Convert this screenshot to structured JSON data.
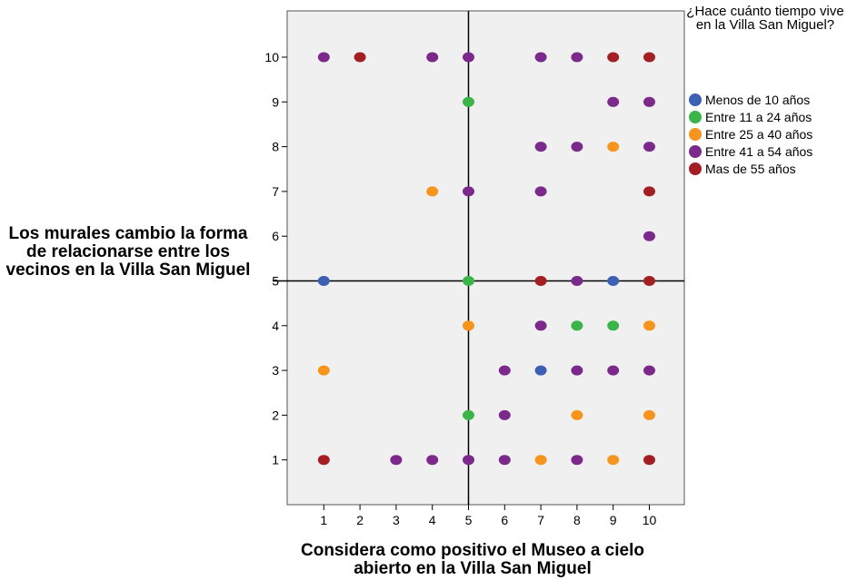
{
  "chart_data": {
    "type": "scatter",
    "title": "",
    "xlabel": "Considera como positivo el Museo a cielo abierto en la Villa San Miguel",
    "ylabel": "Los murales cambio la forma de relacionarse entre los vecinos en la Villa San Miguel",
    "xlim": [
      0,
      11
    ],
    "ylim": [
      0,
      11
    ],
    "xticks": [
      1,
      2,
      3,
      4,
      5,
      6,
      7,
      8,
      9,
      10
    ],
    "yticks": [
      1,
      2,
      3,
      4,
      5,
      6,
      7,
      8,
      9,
      10
    ],
    "grid": false,
    "reference_lines": {
      "x": 5,
      "y": 5
    },
    "legend_title": "¿Hace cuánto tiempo vive en la Villa San Miguel?",
    "legend_position": "right",
    "series": [
      {
        "name": "Menos de 10 años",
        "color": "#3d5fb4",
        "points": [
          [
            1,
            5
          ],
          [
            7,
            3
          ],
          [
            9,
            5
          ]
        ]
      },
      {
        "name": "Entre 11 a 24 años",
        "color": "#3bb54a",
        "points": [
          [
            5,
            9
          ],
          [
            5,
            5
          ],
          [
            8,
            4
          ],
          [
            9,
            4
          ],
          [
            5,
            2
          ]
        ]
      },
      {
        "name": "Entre 25 a 40 años",
        "color": "#f7941d",
        "points": [
          [
            9,
            8
          ],
          [
            4,
            7
          ],
          [
            5,
            4
          ],
          [
            10,
            4
          ],
          [
            1,
            3
          ],
          [
            8,
            2
          ],
          [
            10,
            2
          ],
          [
            7,
            1
          ],
          [
            9,
            1
          ]
        ]
      },
      {
        "name": "Entre 41 a 54 años",
        "color": "#7b2a8c",
        "points": [
          [
            1,
            10
          ],
          [
            4,
            10
          ],
          [
            5,
            10
          ],
          [
            7,
            10
          ],
          [
            8,
            10
          ],
          [
            9,
            9
          ],
          [
            10,
            9
          ],
          [
            7,
            8
          ],
          [
            8,
            8
          ],
          [
            10,
            8
          ],
          [
            5,
            7
          ],
          [
            7,
            7
          ],
          [
            10,
            6
          ],
          [
            8,
            5
          ],
          [
            7,
            4
          ],
          [
            6,
            3
          ],
          [
            8,
            3
          ],
          [
            9,
            3
          ],
          [
            10,
            3
          ],
          [
            6,
            2
          ],
          [
            3,
            1
          ],
          [
            4,
            1
          ],
          [
            5,
            1
          ],
          [
            6,
            1
          ],
          [
            8,
            1
          ]
        ]
      },
      {
        "name": "Mas de 55 años",
        "color": "#a31f24",
        "points": [
          [
            2,
            10
          ],
          [
            9,
            10
          ],
          [
            10,
            10
          ],
          [
            10,
            7
          ],
          [
            7,
            5
          ],
          [
            10,
            5
          ],
          [
            1,
            1
          ],
          [
            10,
            1
          ]
        ]
      }
    ]
  }
}
